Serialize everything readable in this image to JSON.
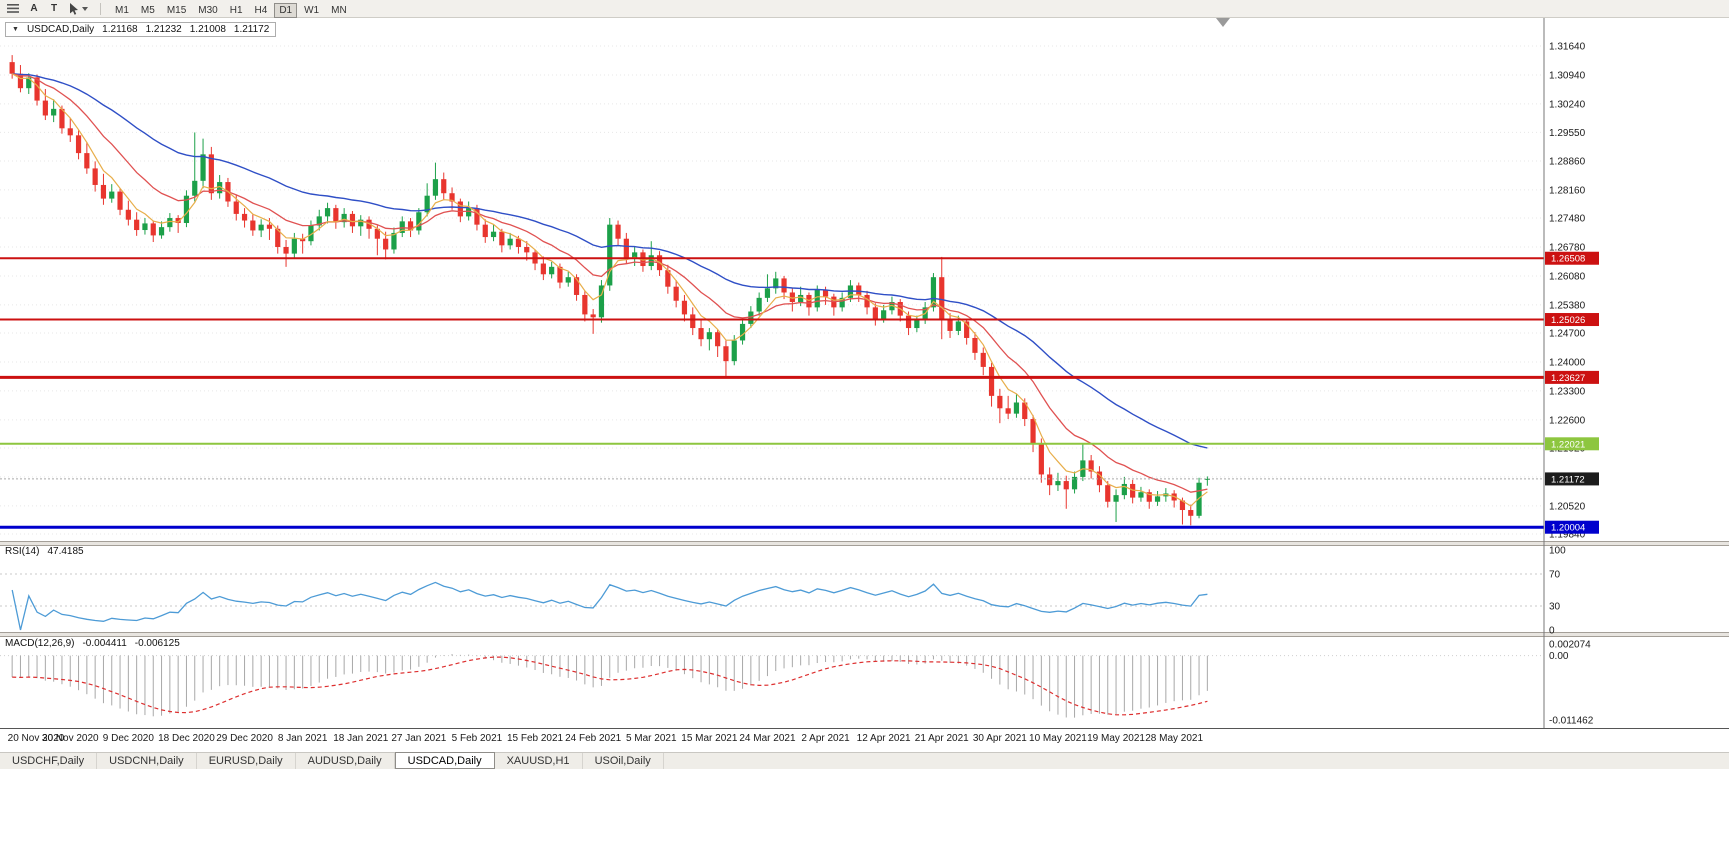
{
  "toolbar": {
    "a_label": "A",
    "t_label": "T",
    "timeframes": [
      "M1",
      "M5",
      "M15",
      "M30",
      "H1",
      "H4",
      "D1",
      "W1",
      "MN"
    ],
    "active_timeframe": "D1"
  },
  "header": {
    "symbol": "USDCAD,Daily",
    "open": "1.21168",
    "high": "1.21232",
    "low": "1.21008",
    "close": "1.21172"
  },
  "rsi": {
    "title": "RSI(14)",
    "value": "47.4185",
    "period": 14,
    "levels": [
      100,
      70,
      30,
      0
    ],
    "axis_labels": [
      "100",
      "70",
      "30",
      "0"
    ]
  },
  "macd": {
    "title": "MACD(12,26,9)",
    "value_main": "-0.004411",
    "value_signal": "-0.006125",
    "fast": 12,
    "slow": 26,
    "signal": 9,
    "axis_labels": [
      {
        "text": "0.002074",
        "value": 0.002074
      },
      {
        "text": "0.00",
        "value": 0
      },
      {
        "text": "-0.011462",
        "value": -0.011462
      }
    ]
  },
  "tabs": {
    "items": [
      {
        "label": "USDCHF,Daily",
        "active": false
      },
      {
        "label": "USDCNH,Daily",
        "active": false
      },
      {
        "label": "EURUSD,Daily",
        "active": false
      },
      {
        "label": "AUDUSD,Daily",
        "active": false
      },
      {
        "label": "USDCAD,Daily",
        "active": true
      },
      {
        "label": "XAUUSD,H1",
        "active": false
      },
      {
        "label": "USOil,Daily",
        "active": false
      }
    ]
  },
  "colors": {
    "bull": "#1CA049",
    "bear": "#E8352E",
    "ma_fast": "#E8AE4A",
    "ma_mid": "#E05252",
    "ma_slow": "#2F4FC6",
    "rsi_line": "#4D9BD6",
    "macd_bar": "#A8A8A8",
    "macd_signal": "#DD2F2F",
    "grid": "#E7E7E7"
  },
  "chart_data": {
    "type": "candlestick",
    "symbol": "USDCAD",
    "timeframe": "Daily",
    "ma_periods": {
      "fast": 5,
      "mid": 13,
      "slow": 34
    },
    "price_axis_labels": [
      "1.31640",
      "1.30940",
      "1.30240",
      "1.29550",
      "1.28860",
      "1.28160",
      "1.27480",
      "1.26780",
      "1.26080",
      "1.25380",
      "1.24700",
      "1.24000",
      "1.23300",
      "1.22600",
      "1.21920",
      "1.21220",
      "1.20520",
      "1.19840"
    ],
    "hlines": [
      {
        "value": 1.26508,
        "label": "1.26508",
        "color": "#CC1111",
        "width": 2
      },
      {
        "value": 1.25026,
        "label": "1.25026",
        "color": "#CC1111",
        "width": 2
      },
      {
        "value": 1.23627,
        "label": "1.23627",
        "color": "#CC1111",
        "width": 3
      },
      {
        "value": 1.22021,
        "label": "1.22021",
        "color": "#8DC63F",
        "width": 2
      },
      {
        "value": 1.20004,
        "label": "1.20004",
        "color": "#0000CD",
        "width": 3
      }
    ],
    "current_price": {
      "value": 1.21172,
      "label": "1.21172",
      "badge_color": "#1C1C1C"
    },
    "date_labels": [
      {
        "index": 0,
        "text": "20 Nov 2020"
      },
      {
        "index": 7,
        "text": "30 Nov 2020"
      },
      {
        "index": 14,
        "text": "9 Dec 2020"
      },
      {
        "index": 21,
        "text": "18 Dec 2020"
      },
      {
        "index": 28,
        "text": "29 Dec 2020"
      },
      {
        "index": 35,
        "text": "8 Jan 2021"
      },
      {
        "index": 42,
        "text": "18 Jan 2021"
      },
      {
        "index": 49,
        "text": "27 Jan 2021"
      },
      {
        "index": 56,
        "text": "5 Feb 2021"
      },
      {
        "index": 63,
        "text": "15 Feb 2021"
      },
      {
        "index": 70,
        "text": "24 Feb 2021"
      },
      {
        "index": 77,
        "text": "5 Mar 2021"
      },
      {
        "index": 84,
        "text": "15 Mar 2021"
      },
      {
        "index": 91,
        "text": "24 Mar 2021"
      },
      {
        "index": 98,
        "text": "2 Apr 2021"
      },
      {
        "index": 105,
        "text": "12 Apr 2021"
      },
      {
        "index": 112,
        "text": "21 Apr 2021"
      },
      {
        "index": 119,
        "text": "30 Apr 2021"
      },
      {
        "index": 126,
        "text": "10 May 2021"
      },
      {
        "index": 133,
        "text": "19 May 2021"
      },
      {
        "index": 140,
        "text": "28 May 2021"
      }
    ],
    "candles": [
      [
        1.3125,
        1.3142,
        1.3085,
        1.3097
      ],
      [
        1.3097,
        1.3118,
        1.3052,
        1.3062
      ],
      [
        1.3062,
        1.3098,
        1.3048,
        1.3088
      ],
      [
        1.3088,
        1.3095,
        1.302,
        1.3032
      ],
      [
        1.3032,
        1.306,
        1.2985,
        1.2996
      ],
      [
        1.2996,
        1.3035,
        1.298,
        1.3012
      ],
      [
        1.3012,
        1.302,
        1.2952,
        1.2965
      ],
      [
        1.2965,
        1.299,
        1.2932,
        1.2948
      ],
      [
        1.2948,
        1.296,
        1.289,
        1.2905
      ],
      [
        1.2905,
        1.2932,
        1.2855,
        1.2868
      ],
      [
        1.2868,
        1.2885,
        1.2812,
        1.2828
      ],
      [
        1.2828,
        1.2855,
        1.278,
        1.2795
      ],
      [
        1.2795,
        1.283,
        1.2785,
        1.2812
      ],
      [
        1.2812,
        1.282,
        1.2755,
        1.2768
      ],
      [
        1.2768,
        1.279,
        1.273,
        1.2744
      ],
      [
        1.2744,
        1.2762,
        1.2705,
        1.2719
      ],
      [
        1.2719,
        1.2748,
        1.2708,
        1.2735
      ],
      [
        1.2735,
        1.2742,
        1.269,
        1.2706
      ],
      [
        1.2706,
        1.274,
        1.2698,
        1.2726
      ],
      [
        1.2726,
        1.276,
        1.2715,
        1.2748
      ],
      [
        1.2748,
        1.2755,
        1.2712,
        1.2736
      ],
      [
        1.2736,
        1.2815,
        1.2726,
        1.2802
      ],
      [
        1.2802,
        1.2955,
        1.2788,
        1.2838
      ],
      [
        1.2838,
        1.294,
        1.282,
        1.2902
      ],
      [
        1.2902,
        1.292,
        1.2792,
        1.2808
      ],
      [
        1.2808,
        1.2852,
        1.2795,
        1.2835
      ],
      [
        1.2835,
        1.2845,
        1.2775,
        1.2788
      ],
      [
        1.2788,
        1.2805,
        1.2742,
        1.2758
      ],
      [
        1.2758,
        1.2772,
        1.2725,
        1.2742
      ],
      [
        1.2742,
        1.2758,
        1.2705,
        1.2718
      ],
      [
        1.2718,
        1.2745,
        1.2702,
        1.2732
      ],
      [
        1.2732,
        1.2748,
        1.2695,
        1.2722
      ],
      [
        1.2722,
        1.273,
        1.2662,
        1.2678
      ],
      [
        1.2678,
        1.2695,
        1.263,
        1.2662
      ],
      [
        1.2662,
        1.2712,
        1.2652,
        1.2698
      ],
      [
        1.2698,
        1.271,
        1.2662,
        1.2692
      ],
      [
        1.2692,
        1.2742,
        1.2682,
        1.273
      ],
      [
        1.273,
        1.2768,
        1.2718,
        1.2752
      ],
      [
        1.2752,
        1.2785,
        1.2735,
        1.2772
      ],
      [
        1.2772,
        1.278,
        1.2722,
        1.2738
      ],
      [
        1.2738,
        1.2772,
        1.2725,
        1.2758
      ],
      [
        1.2758,
        1.2765,
        1.2712,
        1.2728
      ],
      [
        1.2728,
        1.2755,
        1.2705,
        1.2744
      ],
      [
        1.2744,
        1.2752,
        1.2698,
        1.2722
      ],
      [
        1.2722,
        1.273,
        1.2658,
        1.2698
      ],
      [
        1.2698,
        1.2715,
        1.2648,
        1.2672
      ],
      [
        1.2672,
        1.2725,
        1.2662,
        1.2712
      ],
      [
        1.2712,
        1.2752,
        1.2702,
        1.274
      ],
      [
        1.274,
        1.2748,
        1.2702,
        1.2718
      ],
      [
        1.2718,
        1.2772,
        1.2708,
        1.2762
      ],
      [
        1.2762,
        1.2832,
        1.2752,
        1.2802
      ],
      [
        1.2802,
        1.2882,
        1.2792,
        1.2842
      ],
      [
        1.2842,
        1.2858,
        1.2792,
        1.2808
      ],
      [
        1.2808,
        1.2822,
        1.2768,
        1.2788
      ],
      [
        1.2788,
        1.2795,
        1.2738,
        1.2752
      ],
      [
        1.2752,
        1.2788,
        1.2742,
        1.2772
      ],
      [
        1.2772,
        1.278,
        1.2718,
        1.2732
      ],
      [
        1.2732,
        1.2745,
        1.2688,
        1.2702
      ],
      [
        1.2702,
        1.2732,
        1.2692,
        1.2715
      ],
      [
        1.2715,
        1.2722,
        1.2665,
        1.2682
      ],
      [
        1.2682,
        1.2712,
        1.2672,
        1.2698
      ],
      [
        1.2698,
        1.2705,
        1.2662,
        1.2678
      ],
      [
        1.2678,
        1.2692,
        1.2645,
        1.2665
      ],
      [
        1.2665,
        1.2672,
        1.2622,
        1.2638
      ],
      [
        1.2638,
        1.2655,
        1.2598,
        1.2612
      ],
      [
        1.2612,
        1.2642,
        1.2602,
        1.263
      ],
      [
        1.263,
        1.2638,
        1.2578,
        1.2592
      ],
      [
        1.2592,
        1.2618,
        1.2582,
        1.2605
      ],
      [
        1.2605,
        1.2612,
        1.2548,
        1.2562
      ],
      [
        1.2562,
        1.2572,
        1.2498,
        1.2515
      ],
      [
        1.2515,
        1.2528,
        1.2468,
        1.2508
      ],
      [
        1.2508,
        1.2598,
        1.2495,
        1.2585
      ],
      [
        1.2585,
        1.2748,
        1.2572,
        1.2732
      ],
      [
        1.2732,
        1.2742,
        1.2682,
        1.2698
      ],
      [
        1.2698,
        1.2712,
        1.2638,
        1.2652
      ],
      [
        1.2652,
        1.2678,
        1.2632,
        1.2665
      ],
      [
        1.2665,
        1.2672,
        1.2618,
        1.2632
      ],
      [
        1.2632,
        1.2692,
        1.2622,
        1.2658
      ],
      [
        1.2658,
        1.2668,
        1.2608,
        1.2622
      ],
      [
        1.2622,
        1.2635,
        1.2565,
        1.2582
      ],
      [
        1.2582,
        1.2598,
        1.2532,
        1.2548
      ],
      [
        1.2548,
        1.2562,
        1.2498,
        1.2515
      ],
      [
        1.2515,
        1.2532,
        1.2465,
        1.2482
      ],
      [
        1.2482,
        1.2505,
        1.2438,
        1.2455
      ],
      [
        1.2455,
        1.2482,
        1.2428,
        1.2472
      ],
      [
        1.2472,
        1.2478,
        1.2412,
        1.2438
      ],
      [
        1.2438,
        1.2452,
        1.2363,
        1.2402
      ],
      [
        1.2402,
        1.2465,
        1.2392,
        1.2452
      ],
      [
        1.2452,
        1.2502,
        1.2442,
        1.2492
      ],
      [
        1.2492,
        1.2535,
        1.2482,
        1.2522
      ],
      [
        1.2522,
        1.2568,
        1.2512,
        1.2555
      ],
      [
        1.2555,
        1.2612,
        1.2545,
        1.2578
      ],
      [
        1.2578,
        1.2618,
        1.2565,
        1.2602
      ],
      [
        1.2602,
        1.2608,
        1.2552,
        1.2568
      ],
      [
        1.2568,
        1.2578,
        1.2522,
        1.2545
      ],
      [
        1.2545,
        1.2582,
        1.2535,
        1.2562
      ],
      [
        1.2562,
        1.2568,
        1.2512,
        1.2532
      ],
      [
        1.2532,
        1.2585,
        1.2522,
        1.2575
      ],
      [
        1.2575,
        1.2582,
        1.2538,
        1.2558
      ],
      [
        1.2558,
        1.2565,
        1.2512,
        1.2532
      ],
      [
        1.2532,
        1.2568,
        1.2522,
        1.2555
      ],
      [
        1.2555,
        1.2598,
        1.2545,
        1.2585
      ],
      [
        1.2585,
        1.2592,
        1.2545,
        1.2562
      ],
      [
        1.2562,
        1.2572,
        1.2515,
        1.2532
      ],
      [
        1.2532,
        1.2542,
        1.2488,
        1.2505
      ],
      [
        1.2505,
        1.2538,
        1.2495,
        1.2525
      ],
      [
        1.2525,
        1.2558,
        1.2515,
        1.2545
      ],
      [
        1.2545,
        1.2552,
        1.2498,
        1.2512
      ],
      [
        1.2512,
        1.2522,
        1.2465,
        1.2482
      ],
      [
        1.2482,
        1.2512,
        1.2472,
        1.2502
      ],
      [
        1.2502,
        1.2545,
        1.2492,
        1.2532
      ],
      [
        1.2532,
        1.2615,
        1.2522,
        1.2605
      ],
      [
        1.2605,
        1.2654,
        1.2455,
        1.2502
      ],
      [
        1.2502,
        1.2518,
        1.2458,
        1.2475
      ],
      [
        1.2475,
        1.2512,
        1.2465,
        1.2498
      ],
      [
        1.2498,
        1.2505,
        1.2442,
        1.2458
      ],
      [
        1.2458,
        1.2472,
        1.2405,
        1.2422
      ],
      [
        1.2422,
        1.2435,
        1.2368,
        1.2388
      ],
      [
        1.2388,
        1.2398,
        1.2292,
        1.2318
      ],
      [
        1.2318,
        1.2335,
        1.2252,
        1.2288
      ],
      [
        1.2288,
        1.2318,
        1.2262,
        1.2275
      ],
      [
        1.2275,
        1.2322,
        1.2265,
        1.2302
      ],
      [
        1.2302,
        1.2312,
        1.2245,
        1.2262
      ],
      [
        1.2262,
        1.2272,
        1.2182,
        1.2202
      ],
      [
        1.2202,
        1.2215,
        1.2108,
        1.2128
      ],
      [
        1.2128,
        1.2145,
        1.2078,
        1.2102
      ],
      [
        1.2102,
        1.2132,
        1.2088,
        1.2112
      ],
      [
        1.2112,
        1.2125,
        1.2045,
        1.2092
      ],
      [
        1.2092,
        1.2135,
        1.2082,
        1.2122
      ],
      [
        1.2122,
        1.2202,
        1.2112,
        1.2162
      ],
      [
        1.2162,
        1.2175,
        1.2118,
        1.2135
      ],
      [
        1.2135,
        1.2148,
        1.2085,
        1.2102
      ],
      [
        1.2102,
        1.2112,
        1.2048,
        1.2062
      ],
      [
        1.2062,
        1.2092,
        1.2013,
        1.2078
      ],
      [
        1.2078,
        1.2122,
        1.2068,
        1.2105
      ],
      [
        1.2105,
        1.2115,
        1.2058,
        1.2072
      ],
      [
        1.2072,
        1.2098,
        1.2062,
        1.2085
      ],
      [
        1.2085,
        1.2092,
        1.2045,
        1.2062
      ],
      [
        1.2062,
        1.2088,
        1.2052,
        1.2075
      ],
      [
        1.2075,
        1.2095,
        1.2062,
        1.2082
      ],
      [
        1.2082,
        1.209,
        1.2048,
        1.2065
      ],
      [
        1.2065,
        1.2072,
        1.2007,
        1.2042
      ],
      [
        1.2042,
        1.2055,
        1.2005,
        1.2028
      ],
      [
        1.2028,
        1.212,
        1.2022,
        1.2108
      ],
      [
        1.21168,
        1.21232,
        1.21008,
        1.21172
      ]
    ]
  }
}
